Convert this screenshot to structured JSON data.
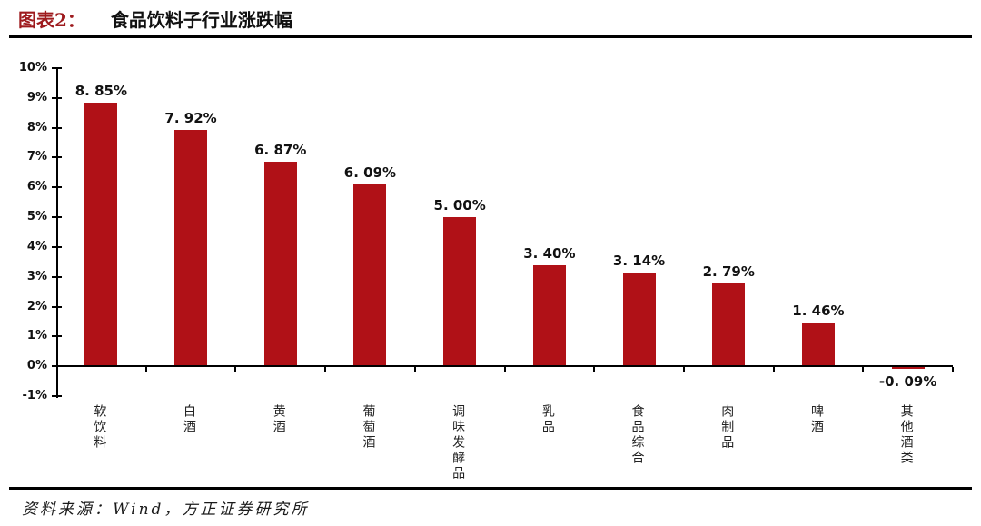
{
  "header": {
    "prefix": "图表2：",
    "title": "食品饮料子行业涨跌幅"
  },
  "footer": {
    "source_label": "资料来源：Wind，方正证券研究所"
  },
  "colors": {
    "bar": "#b01117",
    "title_prefix": "#9e1b1e",
    "axis": "#000000",
    "label_text": "#111111"
  },
  "chart_data": {
    "type": "bar",
    "title": "食品饮料子行业涨跌幅",
    "categories": [
      "软饮料",
      "白酒",
      "黄酒",
      "葡萄酒",
      "调味发酵品",
      "乳品",
      "食品综合",
      "肉制品",
      "啤酒",
      "其他酒类"
    ],
    "values": [
      8.85,
      7.92,
      6.87,
      6.09,
      5.0,
      3.4,
      3.14,
      2.79,
      1.46,
      -0.09
    ],
    "data_labels": [
      "8. 85%",
      "7. 92%",
      "6. 87%",
      "6. 09%",
      "5. 00%",
      "3. 40%",
      "3. 14%",
      "2. 79%",
      "1. 46%",
      "-0. 09%"
    ],
    "xlabel": "",
    "ylabel": "",
    "ylim": [
      -1,
      10
    ],
    "ytick_step": 1,
    "ytick_labels": [
      "10%",
      "9%",
      "8%",
      "7%",
      "6%",
      "5%",
      "4%",
      "3%",
      "2%",
      "1%",
      "0%",
      "-1%"
    ],
    "grid": false,
    "legend": "none",
    "bar_color": "#b01117"
  }
}
